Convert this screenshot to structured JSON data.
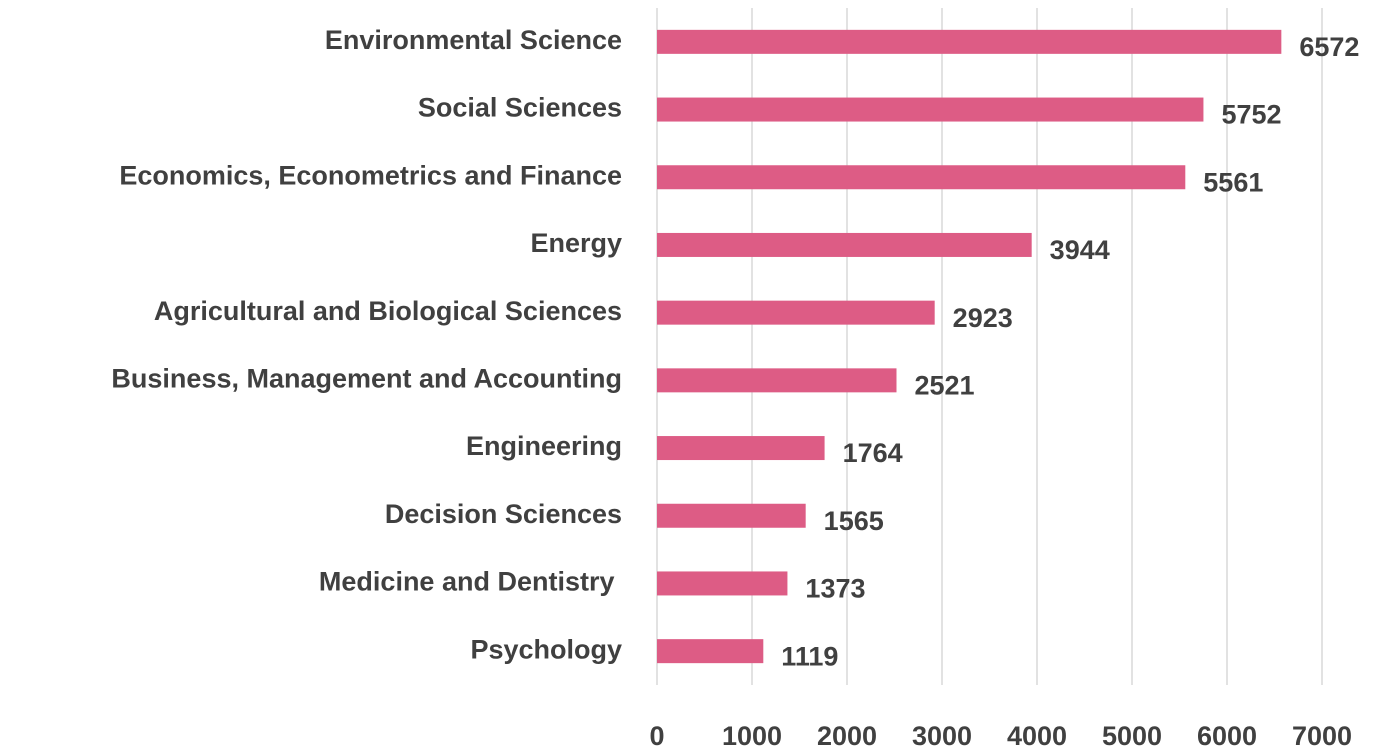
{
  "chart_data": {
    "type": "bar",
    "orientation": "horizontal",
    "categories": [
      "Environmental Science",
      "Social Sciences",
      "Economics, Econometrics and Finance",
      "Energy",
      "Agricultural and Biological Sciences",
      "Business, Management and Accounting",
      "Engineering",
      "Decision Sciences",
      "Medicine and Dentistry ",
      "Psychology"
    ],
    "values": [
      6572,
      5752,
      5561,
      3944,
      2923,
      2521,
      1764,
      1565,
      1373,
      1119
    ],
    "color": "#dd5c85",
    "xlim": [
      0,
      7000
    ],
    "xticks": [
      0,
      1000,
      2000,
      3000,
      4000,
      5000,
      6000,
      7000
    ],
    "grid": true
  }
}
